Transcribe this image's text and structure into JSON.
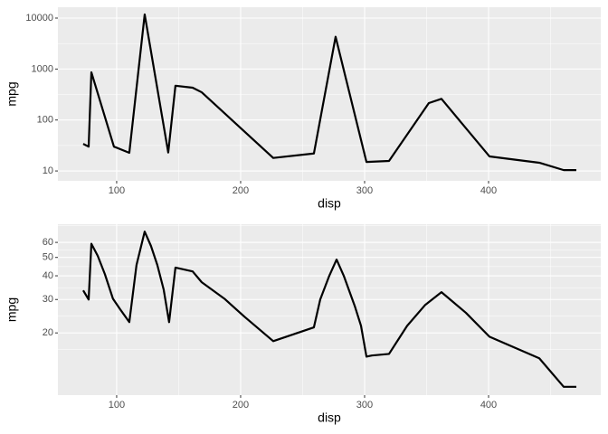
{
  "chart_data": [
    {
      "type": "line",
      "xlabel": "disp",
      "ylabel": "mpg",
      "log_y": true,
      "grid": true,
      "color": "#000000",
      "x": [
        73,
        77.4,
        79.6,
        97.8,
        110.2,
        122.6,
        141.6,
        147.4,
        161.3,
        168.6,
        226.3,
        259.1,
        276.6,
        301.5,
        319.7,
        351.8,
        362,
        400.7,
        440.9,
        460.6,
        470.8
      ],
      "values": [
        34,
        30,
        863,
        30,
        22.7,
        11800,
        23,
        470,
        430,
        350,
        18,
        22,
        4300,
        15,
        15.7,
        215,
        260,
        19.3,
        14.5,
        10.4,
        10.4
      ],
      "xlim": [
        52.6,
        490.5
      ],
      "ylim": [
        6.4,
        16330
      ],
      "xticks": [
        100,
        200,
        300,
        400
      ],
      "yticks": [
        10,
        100,
        1000,
        10000
      ]
    },
    {
      "type": "line",
      "xlabel": "disp",
      "ylabel": "mpg",
      "log_y": true,
      "grid": true,
      "color": "#000000",
      "x": [
        73,
        77.4,
        79.6,
        84.7,
        90.5,
        97,
        102.9,
        110.2,
        116,
        122.6,
        127.7,
        132.8,
        137.9,
        142.3,
        147.4,
        161.3,
        168.6,
        186.9,
        202.9,
        226.3,
        259.1,
        264.2,
        271.5,
        277.4,
        283.2,
        292,
        297.1,
        301.5,
        305.8,
        319.7,
        334.3,
        348.9,
        362,
        381.8,
        400.7,
        440.9,
        460.6,
        470.8
      ],
      "values": [
        33.5,
        30,
        59,
        51,
        40.8,
        30.3,
        26.6,
        22.8,
        45.6,
        68.4,
        57.4,
        45.6,
        33.9,
        22.8,
        44.2,
        42.2,
        37,
        30.3,
        24.4,
        18.1,
        21.4,
        30,
        40,
        48.7,
        40,
        27.8,
        21.8,
        15,
        15.2,
        15.5,
        21.8,
        28.1,
        32.8,
        25.5,
        19.1,
        14.7,
        10.4,
        10.4
      ],
      "xlim": [
        52.6,
        490.5
      ],
      "ylim": [
        9.4,
        74.8
      ],
      "xticks": [
        100,
        200,
        300,
        400
      ],
      "yticks": [
        20,
        30,
        40,
        50,
        60
      ]
    }
  ]
}
